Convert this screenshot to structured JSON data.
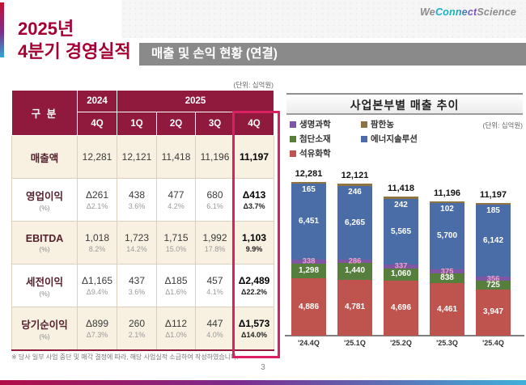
{
  "logo": {
    "we": "We",
    "connect": "Connect",
    "science": "Science"
  },
  "page_title": {
    "line1": "2025년",
    "line2": "4분기 경영실적"
  },
  "section_header": "매출 및 손익 현황 (연결)",
  "unit_label": "(단위: 십억원)",
  "table": {
    "corner_label": "구 분",
    "year_left": "2024",
    "year_right": "2025",
    "quarter_headers": [
      "4Q",
      "1Q",
      "2Q",
      "3Q",
      "4Q"
    ],
    "rows": [
      {
        "label": "매출액",
        "sub": "",
        "values": [
          "12,281",
          "12,121",
          "11,418",
          "11,196",
          "11,197"
        ],
        "subvalues": [
          "",
          "",
          "",
          "",
          ""
        ]
      },
      {
        "label": "영업이익",
        "sub": "(%)",
        "values": [
          "Δ261",
          "438",
          "477",
          "680",
          "Δ413"
        ],
        "subvalues": [
          "Δ2.1%",
          "3.6%",
          "4.2%",
          "6.1%",
          "Δ3.7%"
        ]
      },
      {
        "label": "EBITDA",
        "sub": "(%)",
        "values": [
          "1,018",
          "1,723",
          "1,715",
          "1,992",
          "1,103"
        ],
        "subvalues": [
          "8.2%",
          "14.2%",
          "15.0%",
          "17.8%",
          "9.9%"
        ]
      },
      {
        "label": "세전이익",
        "sub": "(%)",
        "values": [
          "Δ1,165",
          "437",
          "Δ185",
          "457",
          "Δ2,489"
        ],
        "subvalues": [
          "Δ9.4%",
          "3.6%",
          "Δ1.6%",
          "4.1%",
          "Δ22.2%"
        ]
      },
      {
        "label": "당기순이익",
        "sub": "(%)",
        "values": [
          "Δ899",
          "260",
          "Δ112",
          "447",
          "Δ1,573"
        ],
        "subvalues": [
          "Δ7.3%",
          "2.1%",
          "Δ1.0%",
          "4.0%",
          "Δ14.0%"
        ]
      }
    ]
  },
  "footnote": "※ 당사 일부 사업 중단 및 매각 결정에 따라, 해당 사업실적 소급하여 작성하였습니다.",
  "chart_data": {
    "type": "bar",
    "stacked": true,
    "title": "사업본부별 매출 추이",
    "unit": "(단위: 십억원)",
    "categories": [
      "'24.4Q",
      "'25.1Q",
      "'25.2Q",
      "'25.3Q",
      "'25.4Q"
    ],
    "totals": [
      12281,
      12121,
      11418,
      11196,
      11197
    ],
    "series": [
      {
        "name": "석유화학",
        "color": "#BF544E",
        "values": [
          4886,
          4781,
          4696,
          4461,
          3947
        ]
      },
      {
        "name": "첨단소재",
        "color": "#567F3D",
        "values": [
          1298,
          1440,
          1060,
          838,
          725
        ]
      },
      {
        "name": "생명과학",
        "color": "#7E56A3",
        "values": [
          338,
          286,
          337,
          375,
          356
        ]
      },
      {
        "name": "에너지솔루션",
        "color": "#4A6DA8",
        "values": [
          6451,
          6265,
          5565,
          5700,
          6142
        ]
      },
      {
        "name": "팜한농",
        "color": "#8D7440",
        "values": [
          165,
          246,
          242,
          102,
          185
        ]
      }
    ],
    "legend_order": [
      "생명과학",
      "팜한농",
      "첨단소재",
      "에너지솔루션",
      "석유화학"
    ],
    "ylim": [
      0,
      13500
    ],
    "grid": false,
    "legend_position": "top-left"
  },
  "page_number": "3",
  "colors": {
    "brand_red": "#A50034",
    "table_header": "#901A3E",
    "highlight_pink": "#DA1F63",
    "section_bar_gray": "#8A8A8A",
    "row_cream": "#F8F0E1"
  }
}
